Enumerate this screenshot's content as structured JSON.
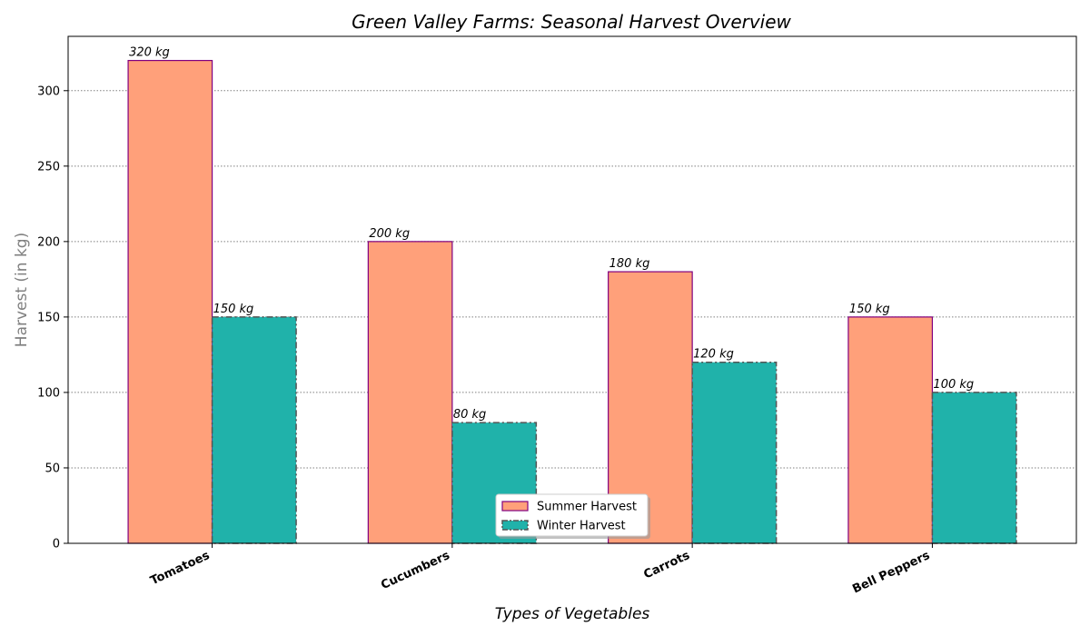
{
  "chart_data": {
    "type": "bar",
    "title": "Green Valley Farms: Seasonal Harvest Overview",
    "xlabel": "Types of Vegetables",
    "ylabel": "Harvest (in kg)",
    "categories": [
      "Tomatoes",
      "Cucumbers",
      "Carrots",
      "Bell Peppers"
    ],
    "series": [
      {
        "name": "Summer Harvest",
        "values": [
          320,
          200,
          180,
          150
        ],
        "labels": [
          "320 kg",
          "200 kg",
          "180 kg",
          "150 kg"
        ],
        "color": "#FFA07A",
        "edge_color": "#800080",
        "edge_style": "solid"
      },
      {
        "name": "Winter Harvest",
        "values": [
          150,
          80,
          120,
          100
        ],
        "labels": [
          "150 kg",
          "80 kg",
          "120 kg",
          "100 kg"
        ],
        "color": "#20B2AA",
        "edge_color": "#555555",
        "edge_style": "dashdot"
      }
    ],
    "ylim": [
      0,
      336
    ],
    "yticks": [
      0,
      50,
      100,
      150,
      200,
      250,
      300
    ],
    "grid": "y-dotted",
    "legend_position": "bottom-center"
  }
}
